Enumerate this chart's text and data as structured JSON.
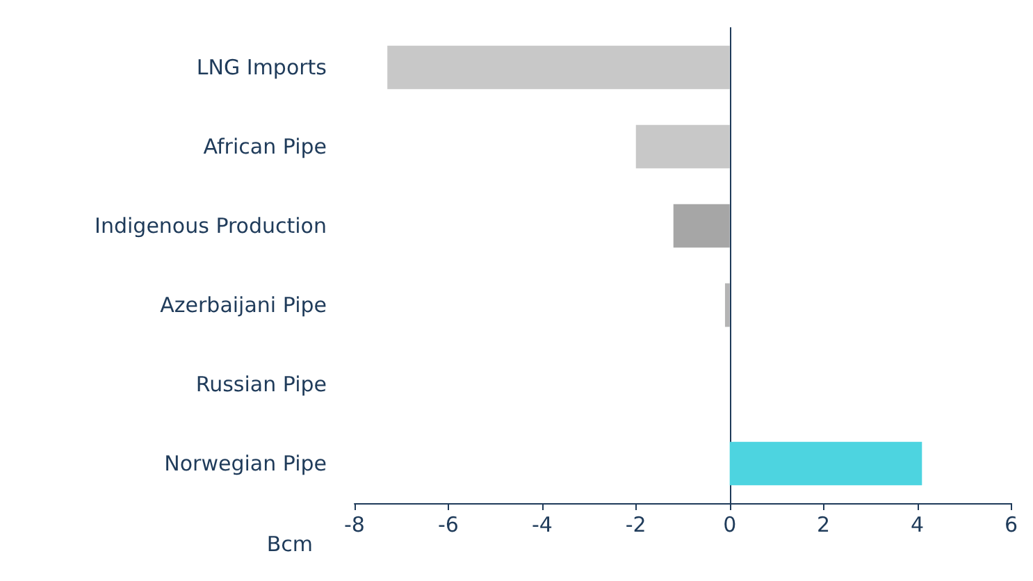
{
  "chart_data": {
    "type": "bar",
    "orientation": "horizontal",
    "xlabel": "Bcm",
    "categories": [
      "LNG Imports",
      "African Pipe",
      "Indigenous Production",
      "Azerbaijani Pipe",
      "Russian Pipe",
      "Norwegian Pipe"
    ],
    "values": [
      -7.3,
      -2.0,
      -1.2,
      -0.1,
      0,
      4.1
    ],
    "colors": [
      "#c8c8c8",
      "#c8c8c8",
      "#a6a6a6",
      "#b4b4b4",
      "#b4b4b4",
      "#4dd4e0"
    ],
    "xlim": [
      -8,
      6
    ],
    "xticks": [
      -8,
      -6,
      -4,
      -2,
      0,
      2,
      4,
      6
    ],
    "grid": false
  }
}
